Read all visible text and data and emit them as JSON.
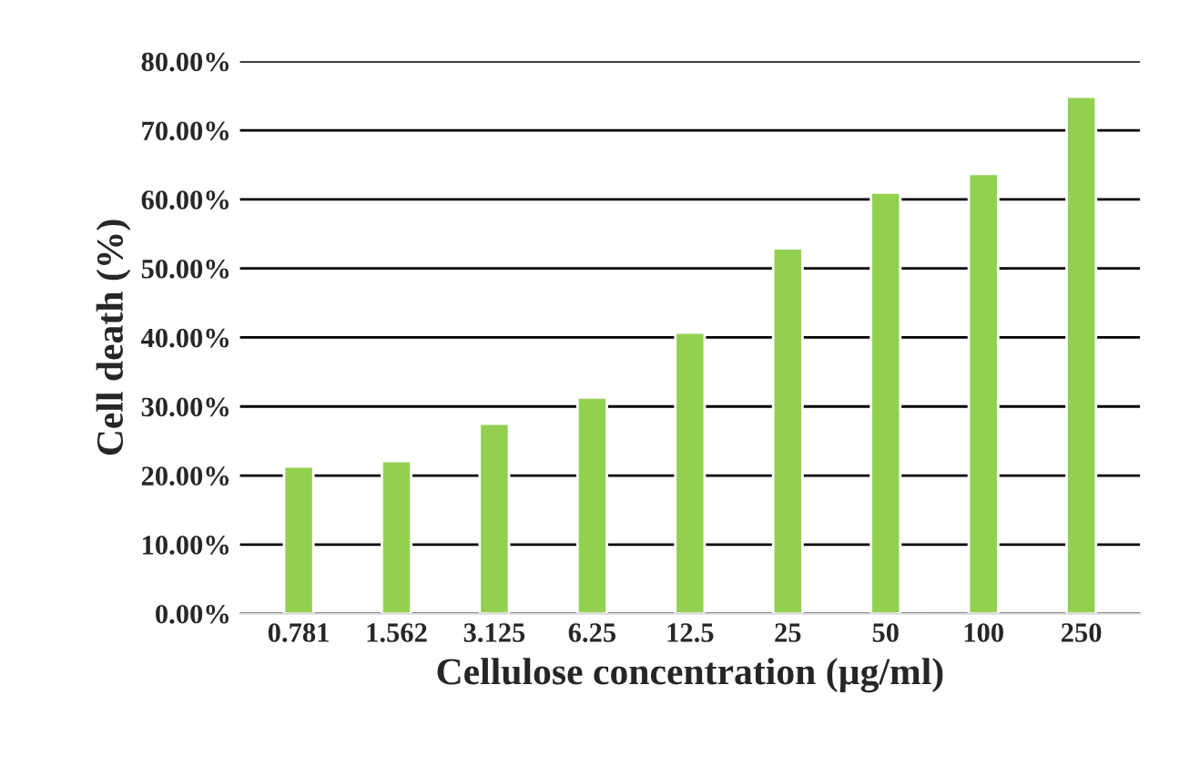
{
  "chart_data": {
    "type": "bar",
    "xlabel": "Cellulose concentration (µg/ml)",
    "ylabel": "Cell death (%)",
    "categories": [
      "0.781",
      "1.562",
      "3.125",
      "6.25",
      "12.5",
      "25",
      "50",
      "100",
      "250"
    ],
    "values": [
      21.3,
      22.1,
      27.5,
      31.3,
      40.7,
      52.9,
      61.0,
      63.7,
      74.9
    ],
    "color": "#92d050",
    "ylim": [
      0,
      80
    ],
    "yticks": [
      {
        "value": 0,
        "label": "0.00%"
      },
      {
        "value": 10,
        "label": "10.00%"
      },
      {
        "value": 20,
        "label": "20.00%"
      },
      {
        "value": 30,
        "label": "30.00%"
      },
      {
        "value": 40,
        "label": "40.00%"
      },
      {
        "value": 50,
        "label": "50.00%"
      },
      {
        "value": 60,
        "label": "60.00%"
      },
      {
        "value": 70,
        "label": "70.00%"
      },
      {
        "value": 80,
        "label": "80.00%"
      }
    ],
    "grid": "y"
  }
}
